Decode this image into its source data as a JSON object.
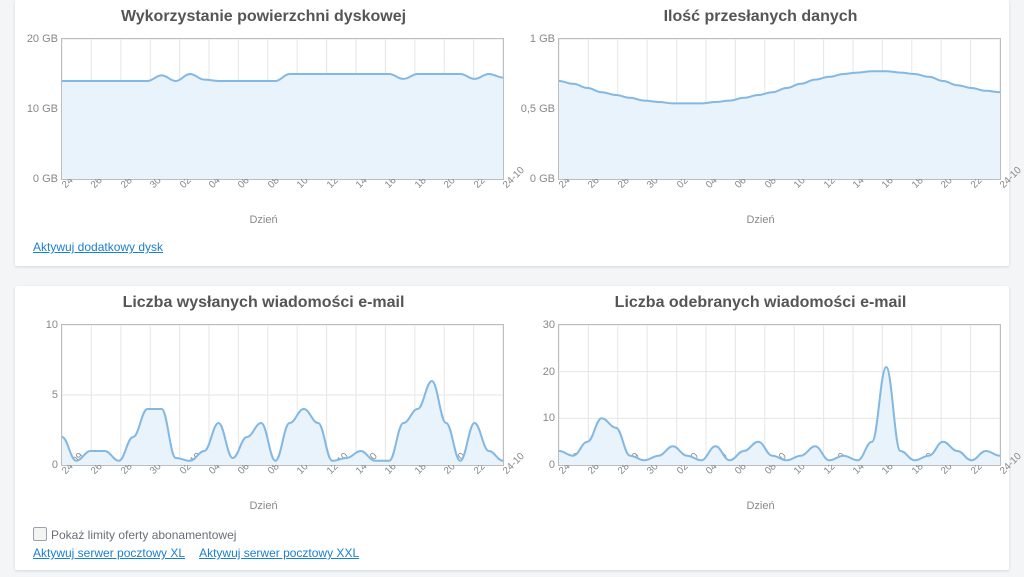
{
  "colors": {
    "panel_bg": "#ffffff",
    "page_bg": "#f3f5f7",
    "grid": "#e6e6e6",
    "axis_border": "#bdbdbd",
    "line": "#82b8e2",
    "fill": "#e8f3fc",
    "tick_text": "#888888",
    "title_text": "#555555",
    "link": "#1b7fcf"
  },
  "x_categories": [
    "24-09",
    "26-09",
    "28-09",
    "30-09",
    "02-10",
    "04-10",
    "06-10",
    "08-10",
    "10-10",
    "12-10",
    "14-10",
    "16-10",
    "18-10",
    "20-10",
    "22-10",
    "24-10"
  ],
  "x_axis_title": "Dzień",
  "charts": {
    "disk": {
      "title": "Wykorzystanie powierzchni dyskowej",
      "type": "area",
      "y_ticks": [
        {
          "v": 0,
          "label": "0 GB"
        },
        {
          "v": 10,
          "label": "10 GB"
        },
        {
          "v": 20,
          "label": "20 GB"
        }
      ],
      "ylim": [
        0,
        20
      ],
      "values_per_half_day": [
        14,
        14,
        14,
        14,
        14,
        14,
        14,
        14.8,
        14,
        15,
        14.2,
        14,
        14,
        14,
        14,
        14,
        15,
        15,
        15,
        15,
        15,
        15,
        15,
        15,
        14.3,
        15,
        15,
        15,
        15,
        14.3,
        15,
        14.5
      ]
    },
    "transfer": {
      "title": "Ilość przesłanych danych",
      "type": "area",
      "y_ticks": [
        {
          "v": 0,
          "label": "0 GB"
        },
        {
          "v": 0.5,
          "label": "0,5 GB"
        },
        {
          "v": 1,
          "label": "1 GB"
        }
      ],
      "ylim": [
        0,
        1
      ],
      "values_per_half_day": [
        0.7,
        0.68,
        0.65,
        0.62,
        0.6,
        0.58,
        0.56,
        0.55,
        0.54,
        0.54,
        0.54,
        0.55,
        0.56,
        0.58,
        0.6,
        0.62,
        0.65,
        0.68,
        0.71,
        0.73,
        0.75,
        0.76,
        0.77,
        0.77,
        0.76,
        0.75,
        0.73,
        0.7,
        0.67,
        0.65,
        0.63,
        0.62
      ]
    },
    "sent": {
      "title": "Liczba wysłanych wiadomości e-mail",
      "type": "area",
      "y_ticks": [
        {
          "v": 0,
          "label": "0"
        },
        {
          "v": 5,
          "label": "5"
        },
        {
          "v": 10,
          "label": "10"
        }
      ],
      "ylim": [
        0,
        10
      ],
      "values_per_half_day": [
        2,
        0.3,
        1,
        1,
        0.3,
        2,
        4,
        4,
        0.5,
        0.3,
        1,
        3,
        0.5,
        2,
        3,
        0.3,
        3,
        4,
        3,
        0.3,
        0.5,
        1,
        0.3,
        0.3,
        3,
        4,
        6,
        3,
        0.3,
        3,
        1,
        0.3
      ]
    },
    "received": {
      "title": "Liczba odebranych wiadomości e-mail",
      "type": "area",
      "y_ticks": [
        {
          "v": 0,
          "label": "0"
        },
        {
          "v": 10,
          "label": "10"
        },
        {
          "v": 20,
          "label": "20"
        },
        {
          "v": 30,
          "label": "30"
        }
      ],
      "ylim": [
        0,
        30
      ],
      "values_per_half_day": [
        3,
        2,
        5,
        10,
        8,
        2,
        1,
        2,
        4,
        2,
        1,
        4,
        1,
        3,
        5,
        2,
        1,
        2,
        4,
        1,
        2,
        1,
        5,
        21,
        3,
        1,
        2,
        5,
        3,
        1,
        3,
        2
      ]
    }
  },
  "panel_top_links": [
    "Aktywuj dodatkowy dysk"
  ],
  "panel_bottom_checkbox_label": "Pokaż limity oferty abonamentowej",
  "panel_bottom_links": [
    "Aktywuj serwer pocztowy XL",
    "Aktywuj serwer pocztowy XXL"
  ]
}
